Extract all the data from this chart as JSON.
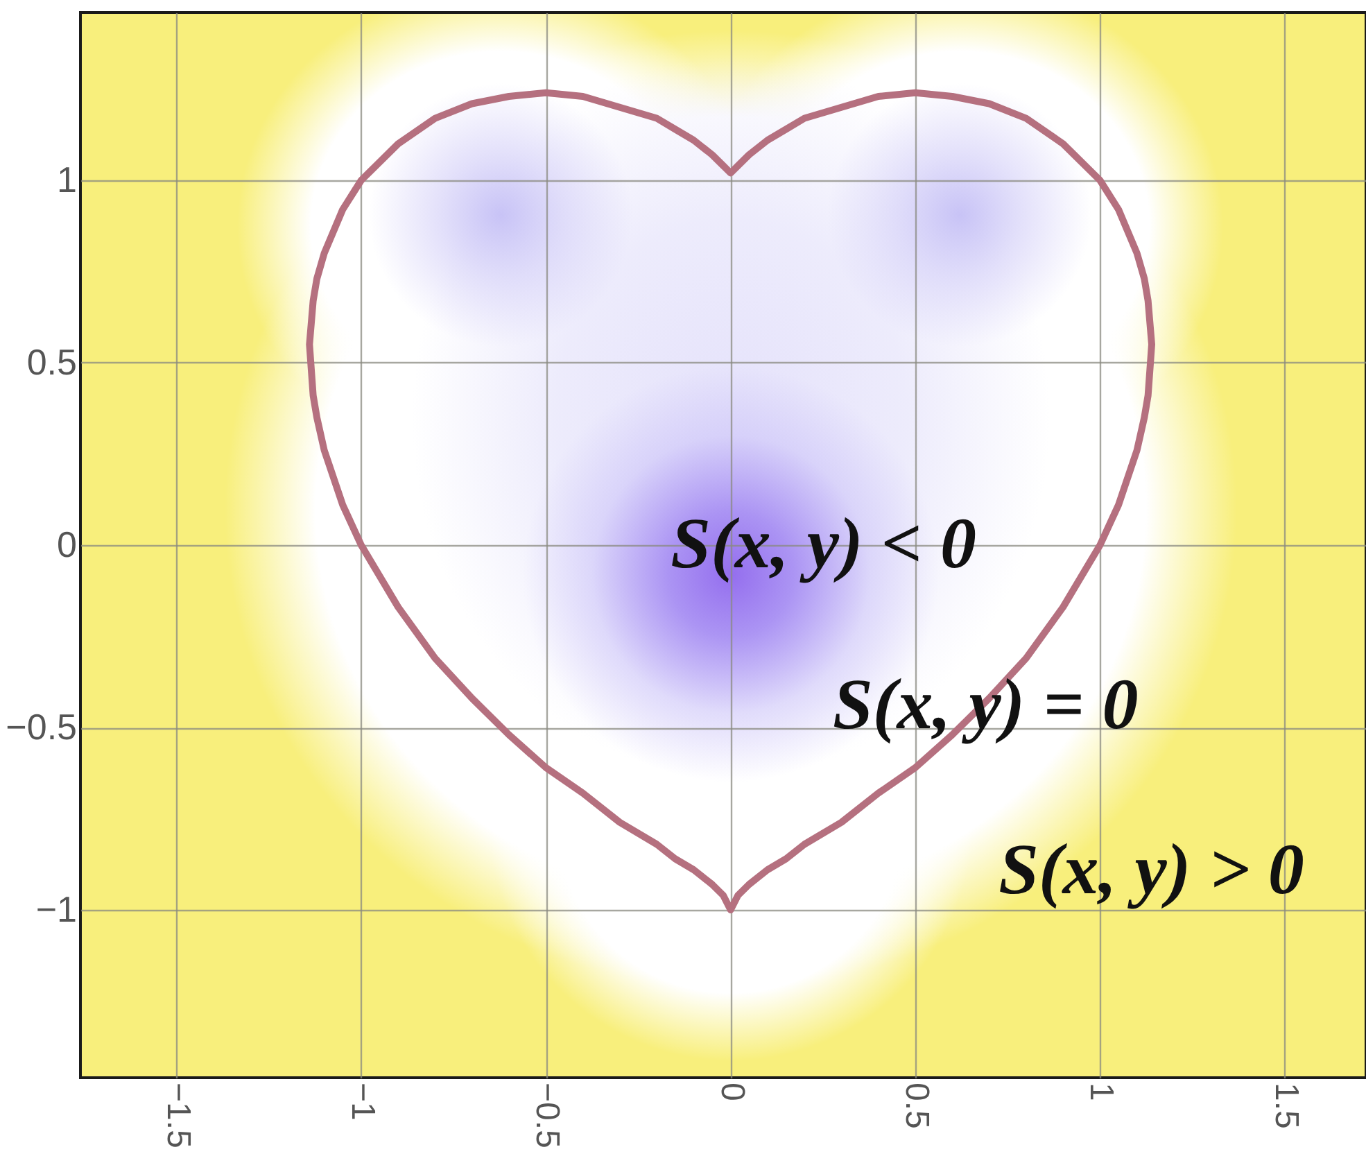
{
  "chart_data": {
    "type": "line",
    "xlim": [
      -1.76,
      1.72
    ],
    "ylim": [
      -1.46,
      1.46
    ],
    "xticks": [
      -1.5,
      -1,
      -0.5,
      0,
      0.5,
      1,
      1.5
    ],
    "yticks": [
      -1,
      -0.5,
      0,
      0.5,
      1
    ],
    "grid": true,
    "x": [
      -1.14,
      -1.13,
      -1.12,
      -1.1,
      -1.05,
      -1,
      -0.9,
      -0.8,
      -0.7,
      -0.6,
      -0.5,
      -0.4,
      -0.3,
      -0.2,
      -0.15,
      -0.1,
      -0.05,
      -0.02,
      0,
      0.02,
      0.05,
      0.1,
      0.15,
      0.2,
      0.3,
      0.4,
      0.5,
      0.6,
      0.7,
      0.8,
      0.9,
      1,
      1.05,
      1.1,
      1.12,
      1.13,
      1.14,
      null,
      -1.14,
      -1.13,
      -1.12,
      -1.1,
      -1.05,
      -1,
      -0.9,
      -0.8,
      -0.7,
      -0.6,
      -0.5,
      -0.4,
      -0.3,
      -0.2,
      -0.15,
      -0.1,
      -0.05,
      -0.02,
      0,
      0.02,
      0.05,
      0.1,
      0.15,
      0.2,
      0.3,
      0.4,
      0.5,
      0.6,
      0.7,
      0.8,
      0.9,
      1,
      1.05,
      1.1,
      1.12,
      1.13,
      1.14
    ],
    "series": [
      {
        "color": "#b5707f",
        "values": [
          0.55,
          0.41,
          0.35,
          0.26,
          0.11,
          0,
          -0.17,
          -0.31,
          -0.42,
          -0.52,
          -0.61,
          -0.68,
          -0.76,
          -0.82,
          -0.86,
          -0.89,
          -0.93,
          -0.96,
          -1,
          -0.96,
          -0.93,
          -0.89,
          -0.86,
          -0.82,
          -0.76,
          -0.68,
          -0.61,
          -0.52,
          -0.42,
          -0.31,
          -0.17,
          0,
          0.11,
          0.26,
          0.35,
          0.41,
          0.55,
          null,
          0.55,
          0.67,
          0.73,
          0.8,
          0.92,
          1,
          1.1,
          1.17,
          1.21,
          1.23,
          1.24,
          1.23,
          1.2,
          1.17,
          1.14,
          1.11,
          1.07,
          1.04,
          1.02,
          1.04,
          1.07,
          1.11,
          1.14,
          1.17,
          1.2,
          1.23,
          1.24,
          1.23,
          1.21,
          1.17,
          1.1,
          1,
          0.92,
          0.8,
          0.73,
          0.67,
          0.55
        ]
      }
    ],
    "annotations": [
      "S(x, y) < 0",
      "S(x, y) = 0",
      "S(x, y) > 0"
    ]
  }
}
